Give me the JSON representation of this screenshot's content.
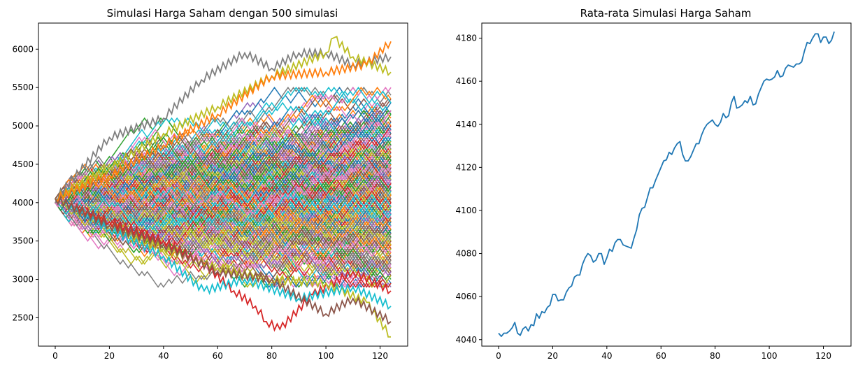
{
  "chart_data": [
    {
      "type": "line",
      "title": "Simulasi Harga Saham dengan 500 simulasi",
      "xlabel": "",
      "ylabel": "",
      "xlim": [
        -6.2,
        130.2
      ],
      "ylim": [
        2130,
        6340
      ],
      "xticks": [
        0,
        20,
        40,
        60,
        80,
        100,
        120
      ],
      "yticks": [
        2500,
        3000,
        3500,
        4000,
        4500,
        5000,
        5500,
        6000
      ],
      "grid": false,
      "legend": "none",
      "n_simulations": 500,
      "n_steps": 125,
      "start_value": 4050,
      "step_size": 50,
      "color_cycle": [
        "#1f77b4",
        "#ff7f0e",
        "#2ca02c",
        "#d62728",
        "#9467bd",
        "#8c564b",
        "#e377c2",
        "#7f7f7f",
        "#bcbd22",
        "#17becf"
      ],
      "highlighted_paths": [
        {
          "color": "#7f7f7f",
          "points": [
            [
              0,
              4050
            ],
            [
              20,
              4850
            ],
            [
              40,
              5100
            ],
            [
              54,
              5600
            ],
            [
              70,
              5950
            ],
            [
              80,
              5750
            ],
            [
              90,
              5950
            ],
            [
              100,
              5950
            ],
            [
              110,
              5800
            ],
            [
              124,
              5900
            ]
          ]
        },
        {
          "color": "#bcbd22",
          "points": [
            [
              0,
              4050
            ],
            [
              20,
              4450
            ],
            [
              40,
              4900
            ],
            [
              60,
              5250
            ],
            [
              80,
              5650
            ],
            [
              100,
              5950
            ],
            [
              103,
              6150
            ],
            [
              110,
              5900
            ],
            [
              124,
              5700
            ]
          ]
        },
        {
          "color": "#ff7f0e",
          "points": [
            [
              0,
              4050
            ],
            [
              20,
              4350
            ],
            [
              40,
              4750
            ],
            [
              60,
              5150
            ],
            [
              80,
              5650
            ],
            [
              100,
              5700
            ],
            [
              115,
              5800
            ],
            [
              124,
              6100
            ]
          ]
        },
        {
          "color": "#d62728",
          "points": [
            [
              0,
              4050
            ],
            [
              20,
              3750
            ],
            [
              40,
              3500
            ],
            [
              55,
              3200
            ],
            [
              66,
              2850
            ],
            [
              74,
              2650
            ],
            [
              78,
              2450
            ],
            [
              83,
              2350
            ],
            [
              95,
              2800
            ],
            [
              110,
              3100
            ],
            [
              124,
              2850
            ]
          ]
        },
        {
          "color": "#bcbd22",
          "points": [
            [
              0,
              4050
            ],
            [
              20,
              3700
            ],
            [
              40,
              3400
            ],
            [
              60,
              3150
            ],
            [
              80,
              3000
            ],
            [
              100,
              2950
            ],
            [
              115,
              2700
            ],
            [
              124,
              2250
            ]
          ]
        },
        {
          "color": "#17becf",
          "points": [
            [
              0,
              4050
            ],
            [
              20,
              3650
            ],
            [
              40,
              3300
            ],
            [
              55,
              2850
            ],
            [
              70,
              3000
            ],
            [
              90,
              2750
            ],
            [
              110,
              2900
            ],
            [
              124,
              2650
            ]
          ]
        },
        {
          "color": "#8c564b",
          "points": [
            [
              0,
              4050
            ],
            [
              20,
              3700
            ],
            [
              40,
              3450
            ],
            [
              60,
              3100
            ],
            [
              80,
              3000
            ],
            [
              100,
              2550
            ],
            [
              110,
              2750
            ],
            [
              124,
              2450
            ]
          ]
        }
      ]
    },
    {
      "type": "line",
      "title": "Rata-rata Simulasi Harga Saham",
      "xlabel": "",
      "ylabel": "",
      "xlim": [
        -6.2,
        130.2
      ],
      "ylim": [
        4037,
        4187
      ],
      "xticks": [
        0,
        20,
        40,
        60,
        80,
        100,
        120
      ],
      "yticks": [
        4040,
        4060,
        4080,
        4100,
        4120,
        4140,
        4160,
        4180
      ],
      "grid": false,
      "legend": "none",
      "color": "#1f77b4",
      "series": [
        {
          "values": [
            4043,
            4041.5,
            4043,
            4043,
            4044,
            4045.5,
            4048,
            4043,
            4042,
            4045,
            4046,
            4044,
            4047,
            4046.5,
            4052,
            4050,
            4053,
            4052.5,
            4055,
            4056,
            4061,
            4061,
            4058,
            4058.5,
            4058.5,
            4062,
            4064,
            4065,
            4069,
            4070,
            4070,
            4075,
            4078,
            4080,
            4079,
            4076,
            4077,
            4080,
            4080,
            4075,
            4078,
            4082,
            4081,
            4085,
            4086.5,
            4086.5,
            4084,
            4083.5,
            4083,
            4082.5,
            4087,
            4091,
            4098,
            4101,
            4101.5,
            4106,
            4110.5,
            4110.5,
            4114,
            4117,
            4120,
            4123,
            4123.5,
            4127,
            4126,
            4129,
            4131,
            4132,
            4126,
            4123,
            4123,
            4125,
            4128,
            4131,
            4131,
            4135,
            4138,
            4140,
            4141,
            4142,
            4140,
            4139,
            4141,
            4145,
            4143,
            4144,
            4150,
            4153,
            4147.5,
            4148,
            4149,
            4151,
            4150,
            4153,
            4149,
            4149.5,
            4154,
            4157,
            4160,
            4161,
            4160.5,
            4161,
            4162,
            4165,
            4162,
            4162.5,
            4166,
            4167.5,
            4167,
            4166.5,
            4168,
            4168,
            4169,
            4174,
            4178,
            4177.5,
            4180,
            4182,
            4182,
            4178,
            4180.5,
            4180.5,
            4177.5,
            4179,
            4183
          ]
        }
      ]
    }
  ]
}
